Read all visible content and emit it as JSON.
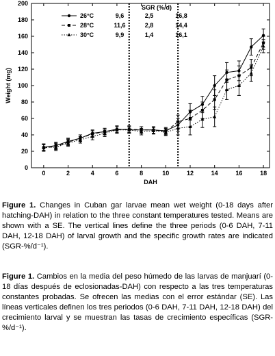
{
  "chart_data": {
    "type": "line",
    "title": "",
    "xlabel": "DAH",
    "ylabel": "Weight (mg)",
    "xlim": [
      -1,
      18.5
    ],
    "ylim": [
      0,
      200
    ],
    "x_ticks": [
      0,
      2,
      4,
      6,
      8,
      10,
      12,
      14,
      16,
      18
    ],
    "y_ticks": [
      0,
      20,
      40,
      60,
      80,
      100,
      120,
      140,
      160,
      180,
      200
    ],
    "grid": false,
    "period_dividers": [
      7,
      11
    ],
    "legend": {
      "placement": "top-left",
      "sgr_header": "SGR (%/d)"
    },
    "series": [
      {
        "name": "26°C",
        "sgr_values": [
          "9,6",
          "2,5",
          "16,8"
        ],
        "style": "solid",
        "marker": "circle",
        "x": [
          0,
          1,
          2,
          3,
          4,
          5,
          6,
          7,
          8,
          9,
          10,
          11,
          12,
          13,
          14,
          15,
          16,
          17,
          18
        ],
        "y": [
          25,
          27,
          32,
          36,
          42,
          44,
          47,
          46,
          46,
          46,
          45,
          52,
          68,
          77,
          100,
          116,
          118,
          147,
          161
        ],
        "se": [
          4,
          4,
          4,
          4,
          4,
          4,
          4,
          4,
          4,
          4,
          4,
          8,
          10,
          10,
          12,
          12,
          12,
          10,
          8
        ]
      },
      {
        "name": "28°C",
        "sgr_values": [
          "11,6",
          "2,8",
          "14,4"
        ],
        "style": "dashed",
        "marker": "square",
        "x": [
          0,
          1,
          2,
          3,
          4,
          5,
          6,
          7,
          8,
          9,
          10,
          11,
          12,
          13,
          14,
          15,
          16,
          17,
          18
        ],
        "y": [
          24,
          26,
          31,
          36,
          41,
          44,
          46,
          47,
          46,
          46,
          44,
          56,
          60,
          70,
          83,
          107,
          112,
          122,
          152
        ],
        "se": [
          4,
          4,
          4,
          4,
          4,
          4,
          4,
          4,
          4,
          4,
          4,
          8,
          10,
          10,
          12,
          12,
          12,
          10,
          8
        ]
      },
      {
        "name": "30°C",
        "sgr_values": [
          "9,9",
          "1,4",
          "16,1"
        ],
        "style": "dotted",
        "marker": "triangle",
        "x": [
          0,
          1,
          2,
          3,
          4,
          5,
          6,
          7,
          8,
          9,
          10,
          11,
          12,
          13,
          14,
          15,
          16,
          17,
          18
        ],
        "y": [
          25,
          25,
          30,
          34,
          38,
          42,
          46,
          46,
          44,
          45,
          43,
          48,
          50,
          59,
          62,
          95,
          100,
          115,
          148
        ],
        "se": [
          4,
          4,
          4,
          4,
          4,
          4,
          4,
          4,
          4,
          4,
          4,
          8,
          10,
          10,
          12,
          12,
          12,
          10,
          8
        ]
      }
    ]
  },
  "captions": {
    "en_label": "Figure 1.",
    "en_text": "Changes in Cuban gar larvae mean wet weight (0-18 days after hatching-DAH) in relation to the three constant temperatures tested. Means are shown with a SE. The vertical lines define the three periods (0-6 DAH, 7-11 DAH, 12-18 DAH) of larval growth and the specific growth rates are indicated (SGR-%/d⁻¹).",
    "es_label": "Figure 1.",
    "es_text": "Cambios en la media del peso húmedo de las larvas de manjuarí (0-18 días después de eclosionadas-DAH) con respecto a las tres temperaturas constantes probadas. Se ofrecen las medias con el error estándar (SE). Las líneas verticales definen los tres periodos (0-6 DAH, 7-11 DAH, 12-18 DAH) del crecimiento larval y se muestran las tasas de crecimiento específicas (SGR-%/d⁻¹)."
  }
}
